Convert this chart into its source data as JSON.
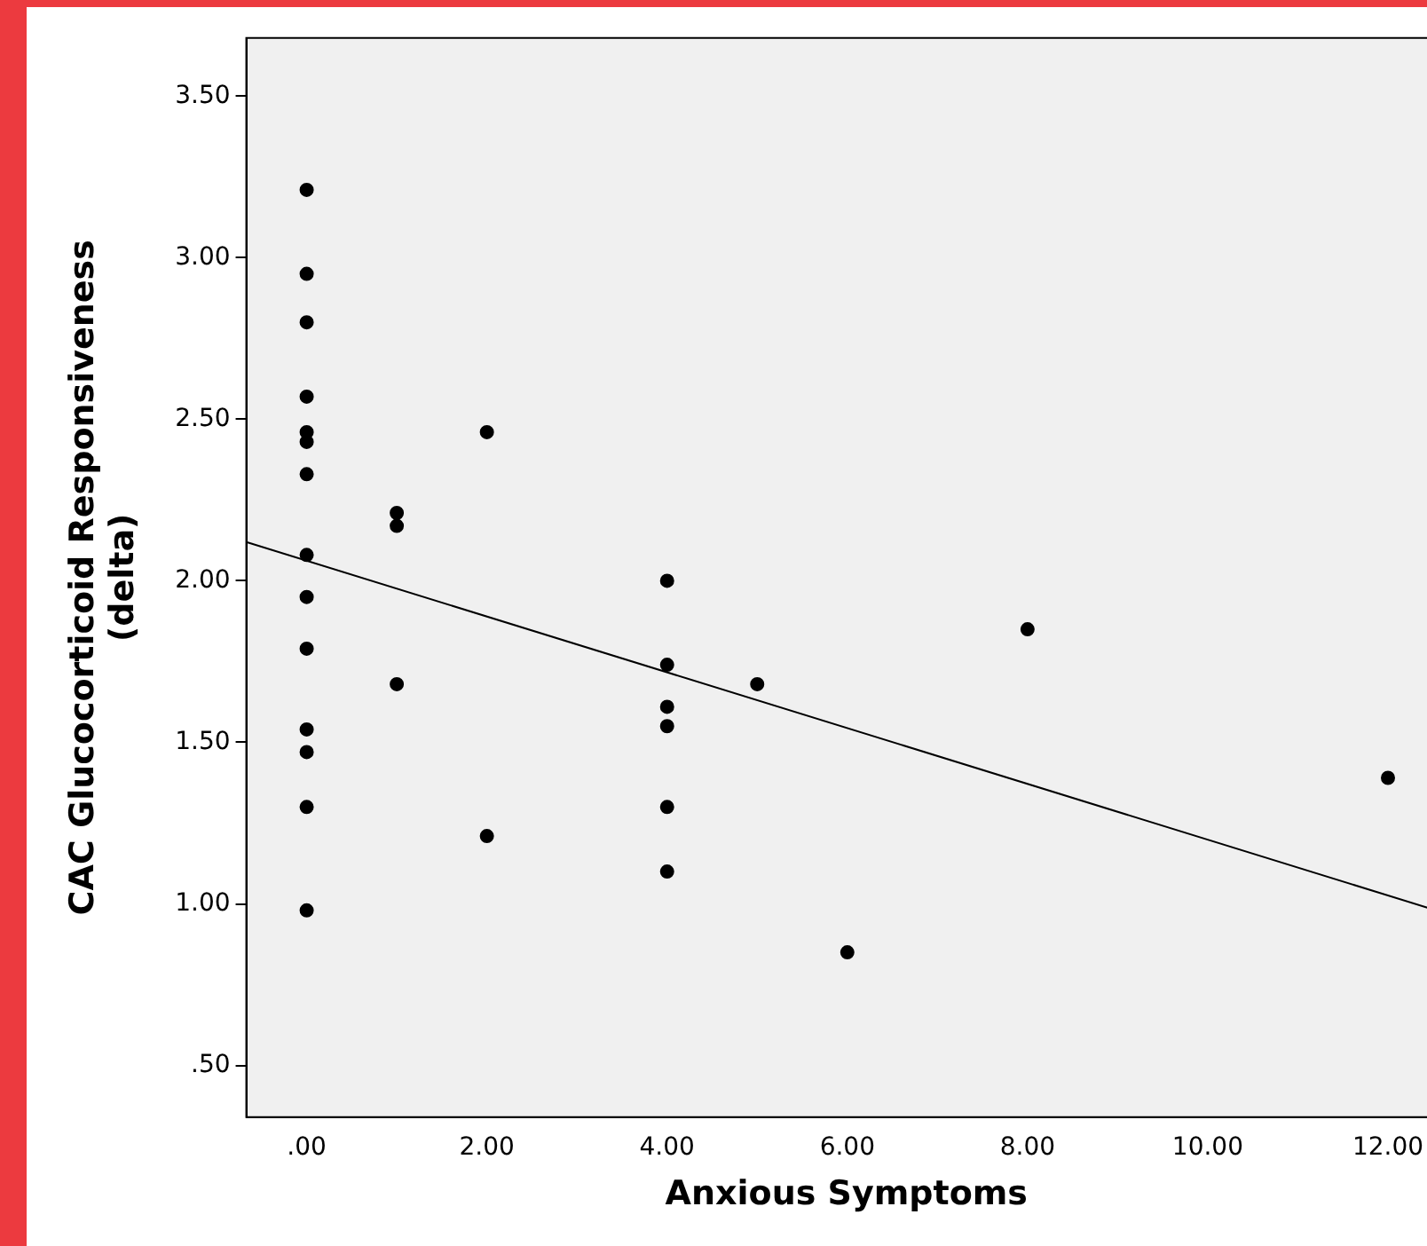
{
  "chart_data": {
    "type": "scatter",
    "xlabel": "Anxious Symptoms",
    "ylabel": "CAC Glucocorticoid Responsiveness\n(delta)",
    "xlim": [
      -0.67,
      12.65
    ],
    "ylim": [
      0.34,
      3.68
    ],
    "xticks": [
      {
        "value": 0,
        "label": ".00"
      },
      {
        "value": 2,
        "label": "2.00"
      },
      {
        "value": 4,
        "label": "4.00"
      },
      {
        "value": 6,
        "label": "6.00"
      },
      {
        "value": 8,
        "label": "8.00"
      },
      {
        "value": 10,
        "label": "10.00"
      },
      {
        "value": 12,
        "label": "12.00"
      }
    ],
    "yticks": [
      {
        "value": 0.5,
        "label": ".50"
      },
      {
        "value": 1,
        "label": "1.00"
      },
      {
        "value": 1.5,
        "label": "1.50"
      },
      {
        "value": 2,
        "label": "2.00"
      },
      {
        "value": 2.5,
        "label": "2.50"
      },
      {
        "value": 3,
        "label": "3.00"
      },
      {
        "value": 3.5,
        "label": "3.50"
      }
    ],
    "grid": false,
    "legend": false,
    "marker": "circle",
    "series": [
      {
        "type": "scatter",
        "color": "#000000",
        "x": [
          0,
          0,
          0,
          0,
          0,
          0,
          0,
          0,
          0,
          0,
          0,
          0,
          0,
          0,
          1,
          1,
          1,
          2,
          2,
          4,
          4,
          4,
          4,
          4,
          4,
          5,
          6,
          8,
          12
        ],
        "values": [
          3.21,
          2.95,
          2.8,
          2.57,
          2.46,
          2.43,
          2.33,
          2.08,
          1.95,
          1.79,
          1.54,
          1.47,
          1.3,
          0.98,
          2.21,
          2.17,
          1.68,
          2.46,
          1.21,
          2.0,
          1.74,
          1.61,
          1.55,
          1.3,
          1.1,
          1.68,
          0.85,
          1.85,
          1.39
        ]
      },
      {
        "type": "line",
        "color": "#000000",
        "x": [
          -0.67,
          12.65
        ],
        "values": [
          2.12,
          0.97
        ],
        "marker": "none"
      }
    ]
  }
}
